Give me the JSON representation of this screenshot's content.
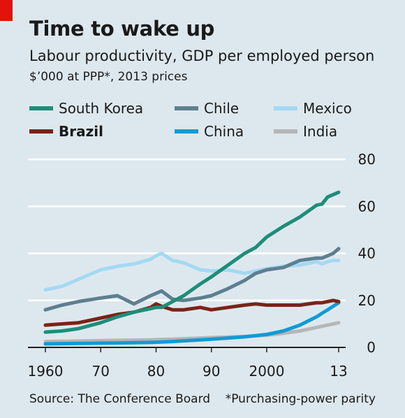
{
  "title": "Time to wake up",
  "subtitle": "Labour productivity, GDP per employed person",
  "units": "$’000 at PPP*, 2013 prices",
  "source": "Source: The Conference Board",
  "footnote": "*Purchasing-power parity",
  "chart_data": {
    "type": "line",
    "title": "Time to wake up",
    "subtitle": "Labour productivity, GDP per employed person",
    "ylabel": "$’000 at PPP*, 2013 prices",
    "xlim": [
      1960,
      2013
    ],
    "ylim": [
      0,
      80
    ],
    "yticks": [
      0,
      20,
      40,
      60,
      80
    ],
    "xticks": [
      {
        "value": 1960,
        "label": "1960"
      },
      {
        "value": 1970,
        "label": "70"
      },
      {
        "value": 1980,
        "label": "80"
      },
      {
        "value": 1990,
        "label": "90"
      },
      {
        "value": 2000,
        "label": "2000"
      },
      {
        "value": 2013,
        "label": "13"
      }
    ],
    "grid": true,
    "legend_position": "top",
    "x": [
      1960,
      1963,
      1966,
      1970,
      1973,
      1976,
      1979,
      1980,
      1981,
      1983,
      1985,
      1988,
      1990,
      1993,
      1996,
      1998,
      2000,
      2003,
      2006,
      2009,
      2010,
      2011,
      2012,
      2013
    ],
    "series": [
      {
        "name": "South Korea",
        "color": "#1e8d7a",
        "bold": false,
        "values": [
          6.5,
          7,
          8,
          10.5,
          13,
          15,
          16.5,
          17,
          17,
          19.5,
          22,
          27,
          30,
          35,
          40,
          42.5,
          47,
          51.5,
          55.5,
          60.5,
          61,
          64,
          65,
          66
        ]
      },
      {
        "name": "Chile",
        "color": "#5d7f90",
        "bold": false,
        "values": [
          16,
          18,
          19.5,
          21,
          22,
          18.5,
          22,
          23,
          24,
          20.5,
          20,
          21,
          22,
          25,
          28.5,
          31.5,
          33,
          34,
          37,
          38,
          38,
          39,
          40,
          42
        ]
      },
      {
        "name": "Mexico",
        "color": "#a3d9f2",
        "bold": false,
        "values": [
          24.5,
          26,
          29,
          33,
          34.5,
          35.5,
          37.5,
          39,
          40,
          37,
          36,
          33,
          32.5,
          33,
          31.5,
          32.5,
          33.5,
          34.5,
          35,
          36.5,
          35.5,
          36.5,
          37,
          37
        ]
      },
      {
        "name": "Brazil",
        "color": "#7a2317",
        "bold": true,
        "values": [
          9.5,
          10,
          10.5,
          12.5,
          14,
          15,
          17,
          18.5,
          17.5,
          16,
          16,
          17,
          16,
          17,
          18,
          18.5,
          18,
          18,
          18,
          19,
          19,
          19.5,
          20,
          19.5
        ]
      },
      {
        "name": "China",
        "color": "#119bd3",
        "bold": false,
        "values": [
          1.5,
          1.6,
          1.7,
          1.8,
          1.9,
          2,
          2.1,
          2.2,
          2.3,
          2.5,
          2.8,
          3.2,
          3.5,
          4,
          4.5,
          5,
          5.5,
          7,
          9.5,
          13,
          14.5,
          16,
          17.5,
          19
        ]
      },
      {
        "name": "India",
        "color": "#b6b6b6",
        "bold": false,
        "values": [
          2.5,
          2.6,
          2.7,
          2.9,
          3,
          3.1,
          3.2,
          3.3,
          3.4,
          3.5,
          3.7,
          4,
          4.2,
          4.4,
          4.7,
          4.9,
          5.2,
          6,
          7,
          8.5,
          9,
          9.5,
          10,
          10.5
        ]
      }
    ]
  }
}
